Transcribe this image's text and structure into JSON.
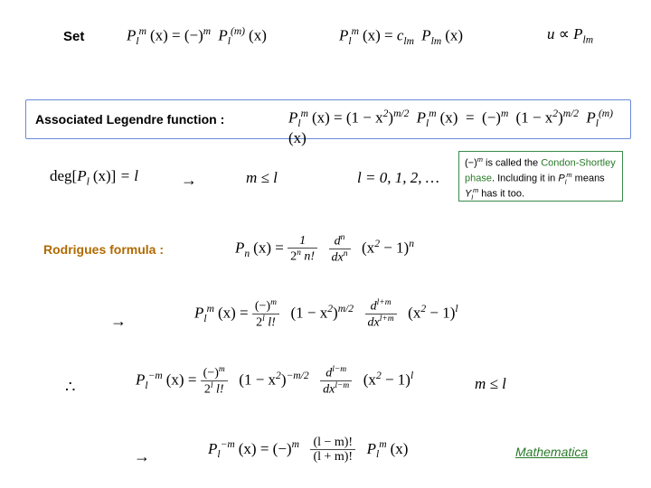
{
  "colors": {
    "blueBorder": "#6a8ad8",
    "greenBorder": "#3a8a4a",
    "rodrigues": "#b06a00",
    "mathematica": "#2a7a2a",
    "background": "#ffffff"
  },
  "row1": {
    "setLabel": "Set",
    "eq1a": {
      "lhs": "P",
      "lhs_sub": "l",
      "lhs_sup": "m",
      "arg": "(x)",
      "rhs_sign": "(−)",
      "rhs_sign_sup": "m",
      "rhs": "P",
      "rhs_sub": "l",
      "rhs_sup": "(m)",
      "rhs_arg": "(x)"
    },
    "eq1b": {
      "lhs": "P",
      "lhs_sub": "l",
      "lhs_sup": "m",
      "arg": "(x)",
      "coef": "c",
      "coef_sub": "lm",
      "rhs": "P",
      "rhs_sub": "lm",
      "rhs_arg": "(x)"
    },
    "eq1c": {
      "u": "u",
      "rel": "∝",
      "P": "P",
      "sub": "lm"
    }
  },
  "assoc": {
    "label": "Associated Legendre function :",
    "eq2": {
      "lhs": "P",
      "lhs_sub": "l",
      "lhs_sup": "m",
      "arg": "(x)",
      "mid_base": "(1 − x",
      "mid_exp_inner": "2",
      "mid_close": ")",
      "mid_outer_sup": "m/2",
      "mid_P": "P",
      "mid_P_sub": "l",
      "mid_P_sup": "m",
      "mid_arg": "(x)",
      "rhs_sign": "(−)",
      "rhs_sign_sup": "m",
      "rhs_base": "(1 − x",
      "rhs_exp_inner": "2",
      "rhs_close": ")",
      "rhs_outer_sup": "m/2",
      "rhs_P": "P",
      "rhs_P_sub": "l",
      "rhs_P_sup": "(m)",
      "rhs_arg": "(x)"
    }
  },
  "row3": {
    "eq3a": {
      "deg": "deg",
      "P": "P",
      "sub": "l",
      "arg": "(x)",
      "eq": "= l"
    },
    "arrow": "→",
    "eq3b": "m ≤ l",
    "eq3c": "l = 0, 1, 2, …",
    "note": {
      "part1": "(−)",
      "part1_sup": "m",
      "part2": " is called the ",
      "phase": "Condon-Shortley phase",
      "part3": ". Including it in ",
      "P": "P",
      "P_sub": "l",
      "P_sup": "m",
      "part4": " means ",
      "Y": "Y",
      "Y_sub": "l",
      "Y_sup": "m",
      "part5": " has it too."
    }
  },
  "rodrigues": {
    "label": "Rodrigues formula :",
    "eq4": {
      "lhs": "P",
      "lhs_sub": "n",
      "arg": "(x)",
      "frac1_num": "1",
      "frac1_den_a": "2",
      "frac1_den_sup": "n",
      "frac1_den_b": " n!",
      "frac2_num_d": "d",
      "frac2_num_sup": "n",
      "frac2_den": "dx",
      "frac2_den_sup": "n",
      "tail": "(x",
      "tail_sup": "2",
      "tail2": " − 1)",
      "tail2_sup": "n"
    }
  },
  "row5": {
    "arrow": "→",
    "eq5": {
      "lhs": "P",
      "lhs_sub": "l",
      "lhs_sup": "m",
      "arg": "(x)",
      "frac1_num": "(−)",
      "frac1_num_sup": "m",
      "frac1_den_a": "2",
      "frac1_den_sup": "l",
      "frac1_den_b": " l!",
      "mid_base": "(1 − x",
      "mid_inner_sup": "2",
      "mid_close": ")",
      "mid_outer_sup": "m/2",
      "frac2_num": "d",
      "frac2_num_sup": "l+m",
      "frac2_den": "dx",
      "frac2_den_sup": "l+m",
      "tail": "(x",
      "tail_sup": "2",
      "tail2": " − 1)",
      "tail2_sup": "l"
    }
  },
  "row6": {
    "therefore": "∴",
    "eq6": {
      "lhs": "P",
      "lhs_sub": "l",
      "lhs_sup": "−m",
      "arg": "(x)",
      "frac1_num": "(−)",
      "frac1_num_sup": "m",
      "frac1_den_a": "2",
      "frac1_den_sup": "l",
      "frac1_den_b": " l!",
      "mid_base": "(1 − x",
      "mid_inner_sup": "2",
      "mid_close": ")",
      "mid_outer_sup": "−m/2",
      "frac2_num": "d",
      "frac2_num_sup": "l−m",
      "frac2_den": "dx",
      "frac2_den_sup": "l−m",
      "tail": "(x",
      "tail_sup": "2",
      "tail2": " − 1)",
      "tail2_sup": "l"
    },
    "eq6b": "m ≤ l"
  },
  "row7": {
    "arrow": "→",
    "eq7": {
      "lhs": "P",
      "lhs_sub": "l",
      "lhs_sup": "−m",
      "arg": "(x)",
      "sign": "(−)",
      "sign_sup": "m",
      "frac_num": "(l − m)!",
      "frac_den": "(l + m)!",
      "rhs": "P",
      "rhs_sub": "l",
      "rhs_sup": "m",
      "rhs_arg": "(x)"
    },
    "mathematica": "Mathematica"
  }
}
